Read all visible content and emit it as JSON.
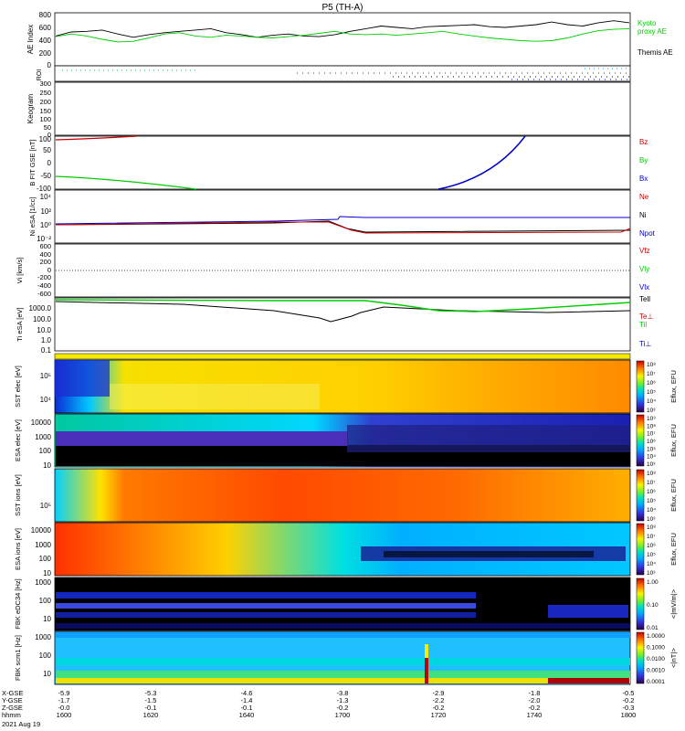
{
  "title": "P5 (TH-A)",
  "date_label": "2021 Aug 19",
  "colors": {
    "black": "#000000",
    "red": "#cc0000",
    "green": "#00cc00",
    "blue": "#0000cc"
  },
  "chart_data": [
    {
      "type": "line",
      "panel": "ae",
      "ylabel": "AE Index",
      "yticks": [
        "800",
        "600",
        "400",
        "200",
        "0"
      ],
      "legend": [
        "Kyoto",
        "proxy AE",
        "Themis AE"
      ],
      "series": [
        {
          "name": "Themis AE",
          "values": [
            450,
            510,
            520,
            540,
            480,
            430,
            470,
            500,
            520,
            540,
            560,
            500,
            470,
            430,
            460,
            480,
            450,
            440,
            470,
            520,
            560,
            600,
            580,
            560,
            590,
            600,
            610,
            620,
            590,
            580,
            600,
            620,
            660,
            620,
            600,
            650,
            680,
            650
          ]
        },
        {
          "name": "Kyoto proxy AE",
          "values": [
            440,
            480,
            450,
            400,
            360,
            370,
            420,
            480,
            500,
            450,
            430,
            460,
            450,
            430,
            420,
            440,
            460,
            490,
            520,
            480,
            470,
            480,
            460,
            480,
            500,
            520,
            480,
            450,
            420,
            400,
            380,
            370,
            380,
            420,
            480,
            530,
            550,
            560
          ]
        }
      ]
    },
    {
      "type": "scatter",
      "panel": "roi",
      "ylabel": "ROI"
    },
    {
      "type": "heatmap",
      "panel": "keogram",
      "ylabel": "Keogram",
      "yticks": [
        "300",
        "250",
        "200",
        "150",
        "100",
        "50",
        "0"
      ]
    },
    {
      "type": "line",
      "panel": "bfit",
      "ylabel": "B FIT GSE [nT]",
      "yticks": [
        "100",
        "50",
        "0",
        "-50",
        "-100"
      ],
      "legend": [
        "Bz",
        "By",
        "Bx"
      ]
    },
    {
      "type": "line",
      "panel": "ni",
      "ylabel": "Ni eSA [1/cc]",
      "yticks": [
        "10⁴",
        "10²",
        "10⁰",
        "10⁻²"
      ],
      "legend": [
        "Ne",
        "Ni",
        "Npot"
      ]
    },
    {
      "type": "line",
      "panel": "vi",
      "ylabel": "Vi [km/s]",
      "yticks": [
        "600",
        "400",
        "200",
        "0",
        "-200",
        "-400",
        "-600"
      ],
      "legend": [
        "Vfz",
        "Vly",
        "Vlx"
      ]
    },
    {
      "type": "line",
      "panel": "ti",
      "ylabel": "Ti eSA [eV]",
      "yticks": [
        "1000.0",
        "100.0",
        "10.0",
        "1.0",
        "0.1"
      ],
      "legend": [
        "Tell",
        "Te⊥",
        "Til",
        "Ti⊥"
      ]
    },
    {
      "type": "heatmap",
      "panel": "sst_e",
      "ylabel": "SST elec [eV]",
      "yticks": [
        "10⁵",
        "10⁴"
      ]
    },
    {
      "type": "heatmap",
      "panel": "esa_e",
      "ylabel": "ESA elec [eV]",
      "yticks": [
        "10000",
        "1000",
        "100",
        "10"
      ]
    },
    {
      "type": "heatmap",
      "panel": "sst_i",
      "ylabel": "SST ions [eV]",
      "yticks": [
        "10⁵"
      ]
    },
    {
      "type": "heatmap",
      "panel": "esa_i",
      "ylabel": "ESA ions [eV]",
      "yticks": [
        "10000",
        "1000",
        "100",
        "10"
      ]
    },
    {
      "type": "heatmap",
      "panel": "fbk1",
      "ylabel": "FBK eDC34 [Hz]",
      "yticks": [
        "1000",
        "100",
        "10"
      ]
    },
    {
      "type": "heatmap",
      "panel": "fbk2",
      "ylabel": "FBK scm1 [Hz]",
      "yticks": [
        "1000",
        "100",
        "10"
      ]
    }
  ],
  "colorbars": [
    {
      "label": "Eflux, EFU",
      "ticks": [
        "10⁸",
        "10⁷",
        "10⁶",
        "10⁵",
        "10⁴",
        "10³"
      ]
    },
    {
      "label": "Eflux, EFU",
      "ticks": [
        "10⁹",
        "10⁸",
        "10⁷",
        "10⁶",
        "10⁵",
        "10⁴",
        "10³"
      ]
    },
    {
      "label": "Eflux, EFU",
      "ticks": [
        "10⁸",
        "10⁷",
        "10⁶",
        "10⁵",
        "10⁴",
        "10³"
      ]
    },
    {
      "label": "Eflux, EFU",
      "ticks": [
        "10⁸",
        "10⁷",
        "10⁶",
        "10⁵",
        "10⁴",
        "10³"
      ]
    },
    {
      "label": "<|mV/m|>",
      "ticks": [
        "1.00",
        "0.10",
        "0.01"
      ]
    },
    {
      "label": "<|nT|>",
      "ticks": [
        "1.0000",
        "0.1000",
        "0.0100",
        "0.0010",
        "0.0001"
      ]
    }
  ],
  "x_axis": {
    "rows": [
      "X-GSE",
      "Y-GSE",
      "Z-GSE",
      "hhmm"
    ],
    "columns": [
      [
        "-5.9",
        "-1.7",
        "-0.0",
        "1600"
      ],
      [
        "-5.3",
        "-1.5",
        "-0.1",
        "1620"
      ],
      [
        "-4.6",
        "-1.4",
        "-0.1",
        "1640"
      ],
      [
        "-3.8",
        "-1.3",
        "-0.2",
        "1700"
      ],
      [
        "-2.9",
        "-2.2",
        "-0.2",
        "1720"
      ],
      [
        "-1.8",
        "-2.0",
        "-0.2",
        "1740"
      ],
      [
        "-0.5",
        "-0.2",
        "-0.3",
        "1800"
      ]
    ]
  }
}
